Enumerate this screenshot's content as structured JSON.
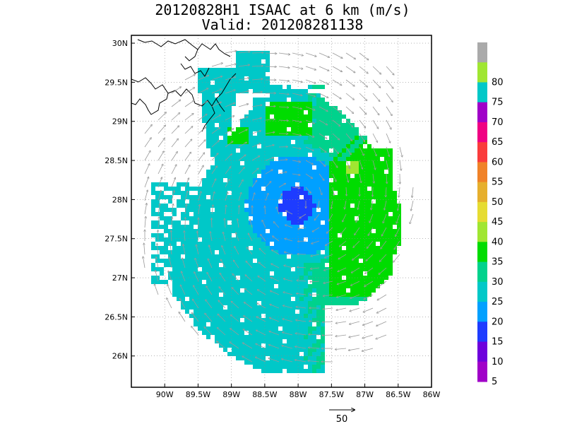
{
  "title": {
    "line1": "20120828H1 ISAAC at 6 km (m/s)",
    "line2": "Valid: 201208281138"
  },
  "map": {
    "lon_range": [
      -90.5,
      -86.0
    ],
    "lat_range": [
      25.6,
      30.1
    ],
    "lon_ticks": [
      {
        "value": -90.0,
        "label": "90W"
      },
      {
        "value": -89.5,
        "label": "89.5W"
      },
      {
        "value": -89.0,
        "label": "89W"
      },
      {
        "value": -88.5,
        "label": "88.5W"
      },
      {
        "value": -88.0,
        "label": "88W"
      },
      {
        "value": -87.5,
        "label": "87.5W"
      },
      {
        "value": -87.0,
        "label": "87W"
      },
      {
        "value": -86.5,
        "label": "86.5W"
      },
      {
        "value": -86.0,
        "label": "86W"
      }
    ],
    "lat_ticks": [
      {
        "value": 26.0,
        "label": "26N"
      },
      {
        "value": 26.5,
        "label": "26.5N"
      },
      {
        "value": 27.0,
        "label": "27N"
      },
      {
        "value": 27.5,
        "label": "27.5N"
      },
      {
        "value": 28.0,
        "label": "28N"
      },
      {
        "value": 28.5,
        "label": "28.5N"
      },
      {
        "value": 29.0,
        "label": "29N"
      },
      {
        "value": 29.5,
        "label": "29.5N"
      },
      {
        "value": 30.0,
        "label": "30N"
      }
    ],
    "grid": "dotted",
    "storm_center": {
      "lon": -88.05,
      "lat": 27.95
    },
    "coastline_color": "#000000",
    "vector_color": "#999999"
  },
  "colorbar": {
    "levels": [
      {
        "label": "",
        "color": "#aaaaaa"
      },
      {
        "label": "80",
        "color": "#a0e632"
      },
      {
        "label": "75",
        "color": "#00c8c8"
      },
      {
        "label": "70",
        "color": "#a000c8"
      },
      {
        "label": "65",
        "color": "#f00082"
      },
      {
        "label": "60",
        "color": "#fa3c3c"
      },
      {
        "label": "55",
        "color": "#f08228"
      },
      {
        "label": "50",
        "color": "#e6af2d"
      },
      {
        "label": "45",
        "color": "#e6dc32"
      },
      {
        "label": "40",
        "color": "#a0e632"
      },
      {
        "label": "35",
        "color": "#00dc00"
      },
      {
        "label": "30",
        "color": "#00d28c"
      },
      {
        "label": "25",
        "color": "#00c8c8"
      },
      {
        "label": "20",
        "color": "#00a0ff"
      },
      {
        "label": "15",
        "color": "#1e3cff"
      },
      {
        "label": "10",
        "color": "#6e00dc"
      },
      {
        "label": "5",
        "color": "#a000c8"
      }
    ]
  },
  "reference_vector": {
    "label": "50"
  }
}
